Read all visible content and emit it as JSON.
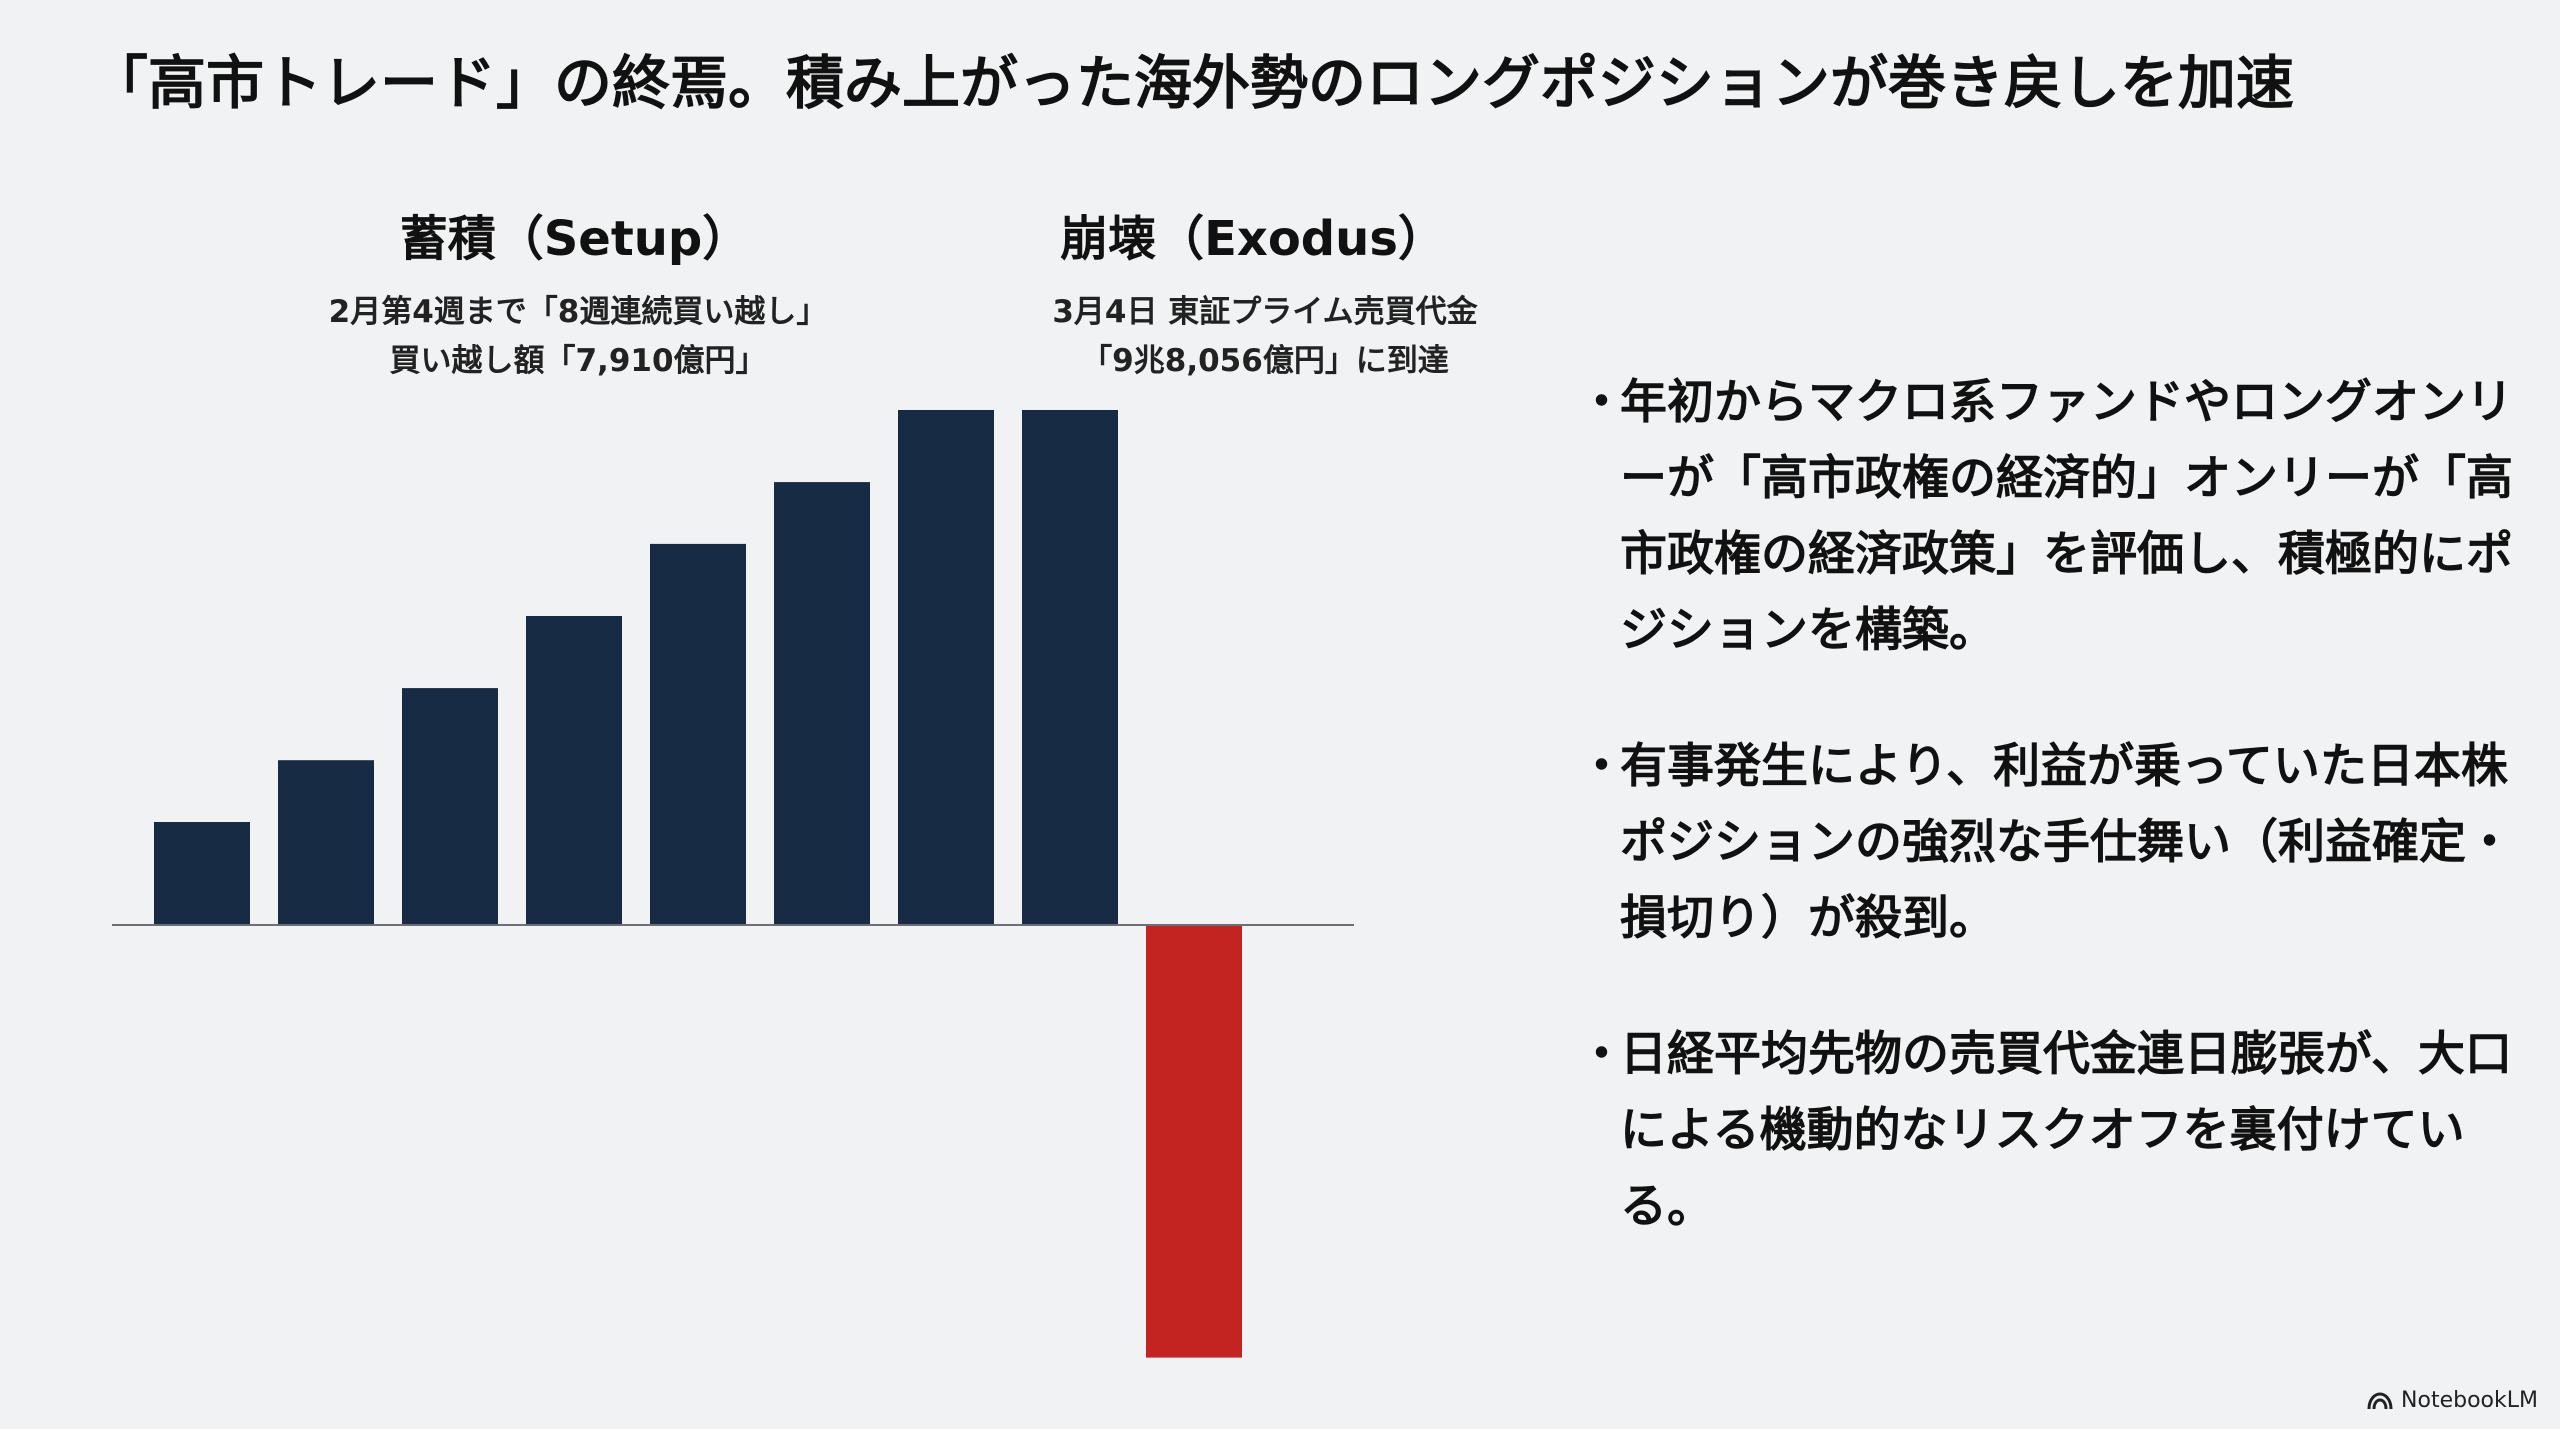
{
  "title": "「高市トレード」の終焉。積み上がった海外勢のロングポジションが巻き戻しを加速",
  "chart_data": {
    "type": "bar",
    "categories": [
      "",
      "",
      "",
      "",
      "",
      "",
      "",
      "",
      ""
    ],
    "series": [
      {
        "values": [
          1.0,
          1.6,
          2.3,
          3.0,
          3.7,
          4.3,
          5.0,
          5.0,
          -4.2
        ],
        "colors": [
          "#172b44",
          "#172b44",
          "#172b44",
          "#172b44",
          "#172b44",
          "#172b44",
          "#172b44",
          "#172b44",
          "#c42421"
        ]
      }
    ],
    "annotations": [
      {
        "heading": "蓄積（Setup）",
        "lines": [
          "2月第4週まで「8週連続買い越し」",
          "買い越し額「7,910億円」"
        ]
      },
      {
        "heading": "崩壊（Exodus）",
        "lines": [
          "3月4日 東証プライム売買代金",
          "「9兆8,056億円」に到達"
        ]
      }
    ],
    "title": "",
    "xlabel": "",
    "ylabel": "",
    "grid": false,
    "legend": "none"
  },
  "bullets": [
    "年初からマクロ系ファンドやロングオンリーが「高市政権の経済的」オンリーが「高市政権の経済政策」を評価し、積極的にポジションを構築。",
    "有事発生により、利益が乗っていた日本株ポジションの強烈な手仕舞い（利益確定・損切り）が殺到。",
    "日経平均先物の売買代金連日膨張が、大口による機動的なリスクオフを裏付けている。"
  ],
  "bullet_symbol": "・",
  "brand": {
    "name": "NotebookLM",
    "icon": "notebooklm-logo-icon"
  }
}
